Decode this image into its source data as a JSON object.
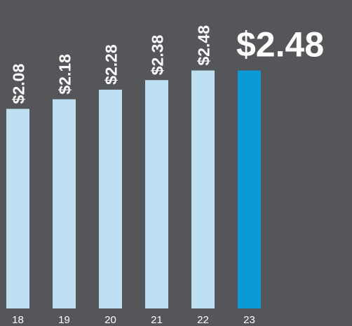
{
  "chart_data": {
    "type": "bar",
    "categories": [
      "18",
      "19",
      "20",
      "21",
      "22",
      "23"
    ],
    "values": [
      2.08,
      2.18,
      2.28,
      2.38,
      2.48,
      2.48
    ],
    "value_labels": [
      "$2.08",
      "$2.18",
      "$2.28",
      "$2.38",
      "$2.48",
      "$2.48"
    ],
    "colors": [
      "#bfdff3",
      "#bfdff3",
      "#bfdff3",
      "#bfdff3",
      "#bfdff3",
      "#0a9bd6"
    ],
    "ylim": [
      0,
      3.2
    ]
  }
}
